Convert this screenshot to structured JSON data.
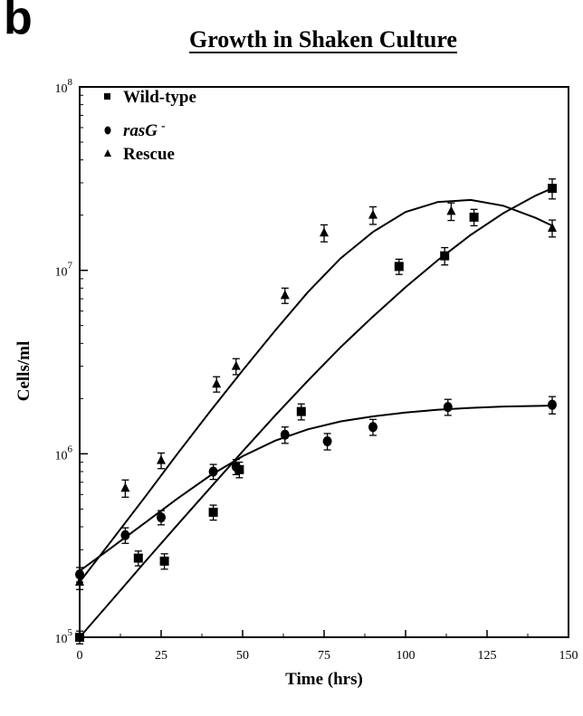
{
  "panel_label": "b",
  "chart_data": {
    "type": "scatter",
    "title": "Growth in Shaken Culture",
    "xlabel": "Time (hrs)",
    "ylabel": "Cells/ml",
    "xlim": [
      0,
      150
    ],
    "ylim": [
      100000,
      100000000
    ],
    "yscale": "log",
    "xticks": [
      0,
      25,
      50,
      75,
      100,
      125,
      150
    ],
    "yticks": [
      {
        "value": 100000,
        "base": "10",
        "exp": "5"
      },
      {
        "value": 1000000,
        "base": "10",
        "exp": "6"
      },
      {
        "value": 10000000,
        "base": "10",
        "exp": "7"
      },
      {
        "value": 100000000,
        "base": "10",
        "exp": "8"
      }
    ],
    "legend_position": "top-left",
    "series": [
      {
        "name": "Wild-type",
        "marker": "square",
        "x": [
          0,
          18,
          26,
          41,
          49,
          68,
          98,
          112,
          121,
          145
        ],
        "y": [
          100000,
          270000,
          260000,
          480000,
          820000,
          1700000,
          10500000,
          12000000,
          19500000,
          28000000
        ],
        "err": [
          8000,
          25000,
          25000,
          45000,
          80000,
          170000,
          1000000,
          1300000,
          2000000,
          3500000
        ],
        "fit_x": [
          0,
          10,
          20,
          30,
          40,
          50,
          60,
          70,
          80,
          90,
          100,
          110,
          120,
          130,
          140,
          145
        ],
        "fit_y": [
          100000,
          160000,
          257000,
          410000,
          650000,
          1030000,
          1620000,
          2500000,
          3800000,
          5600000,
          8100000,
          11400000,
          15600000,
          20500000,
          25600000,
          28000000
        ]
      },
      {
        "name": "rasG -",
        "name_main": "rasG",
        "name_sup": "-",
        "marker": "circle",
        "x": [
          0,
          14,
          25,
          41,
          48,
          63,
          76,
          90,
          113,
          145
        ],
        "y": [
          220000,
          360000,
          450000,
          800000,
          850000,
          1270000,
          1170000,
          1400000,
          1800000,
          1850000
        ],
        "err": [
          20000,
          35000,
          40000,
          75000,
          80000,
          130000,
          120000,
          140000,
          180000,
          200000
        ],
        "fit_x": [
          0,
          10,
          20,
          30,
          40,
          50,
          60,
          70,
          80,
          90,
          100,
          110,
          120,
          130,
          145
        ],
        "fit_y": [
          230000,
          310000,
          420000,
          570000,
          760000,
          970000,
          1180000,
          1360000,
          1500000,
          1600000,
          1680000,
          1740000,
          1780000,
          1810000,
          1830000
        ]
      },
      {
        "name": "Rescue",
        "marker": "triangle",
        "x": [
          0,
          14,
          25,
          42,
          48,
          63,
          75,
          90,
          114,
          145
        ],
        "y": [
          200000,
          650000,
          920000,
          2400000,
          3000000,
          7300000,
          16000000,
          20000000,
          21000000,
          17000000
        ],
        "err": [
          18000,
          70000,
          90000,
          230000,
          300000,
          700000,
          1700000,
          2200000,
          2300000,
          1800000
        ],
        "fit_x": [
          0,
          10,
          20,
          30,
          40,
          50,
          60,
          70,
          80,
          90,
          100,
          110,
          120,
          130,
          140,
          145
        ],
        "fit_y": [
          200000,
          340000,
          580000,
          1000000,
          1700000,
          2850000,
          4700000,
          7600000,
          11600000,
          16200000,
          20800000,
          23600000,
          24200000,
          22500000,
          19300000,
          17500000
        ]
      }
    ]
  }
}
